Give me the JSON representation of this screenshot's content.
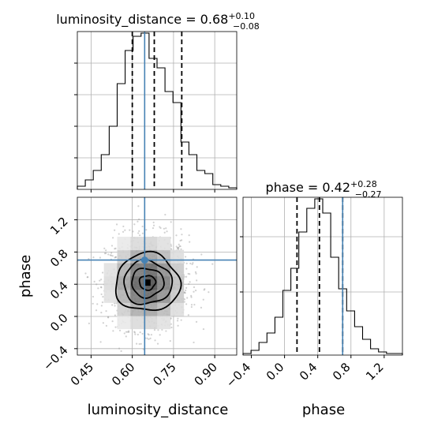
{
  "chart_data": {
    "type": "corner",
    "parameters": [
      "luminosity_distance",
      "phase"
    ],
    "truth": {
      "luminosity_distance": 0.645,
      "phase": 0.7
    },
    "truth_color": "#4682b4",
    "line_color": "#000000",
    "panels": [
      {
        "id": "luminosity-distance-hist",
        "type": "histogram",
        "title": {
          "main": "luminosity_distance = 0.68",
          "sup": "+0.10",
          "sub": "−0.08"
        },
        "xlim": [
          0.4,
          0.98
        ],
        "ylim": [
          0,
          1.0
        ],
        "x_ticks": [
          0.45,
          0.6,
          0.75,
          0.9
        ],
        "show_x_tick_labels": false,
        "y_ticks": [
          0.2,
          0.4,
          0.6,
          0.8
        ],
        "bins": {
          "start": 0.4,
          "width": 0.029,
          "counts": [
            0.02,
            0.06,
            0.12,
            0.22,
            0.4,
            0.67,
            0.88,
            0.97,
            0.99,
            0.83,
            0.77,
            0.62,
            0.55,
            0.3,
            0.22,
            0.12,
            0.1,
            0.03,
            0.02,
            0.01
          ]
        },
        "quantile_lines": [
          0.6,
          0.68,
          0.78
        ],
        "truth_line": 0.645
      },
      {
        "id": "phase-hist",
        "type": "histogram",
        "title": {
          "main": "phase = 0.42",
          "sup": "+0.28",
          "sub": "−0.27"
        },
        "xlim": [
          -0.5,
          1.42
        ],
        "ylim": [
          0,
          1.0
        ],
        "x_ticks": [
          -0.4,
          0.0,
          0.4,
          0.8,
          1.2
        ],
        "x_tick_labels": [
          "−0.4",
          "0.0",
          "0.4",
          "0.8",
          "1.2"
        ],
        "y_ticks": [
          0.4,
          0.75
        ],
        "bins": {
          "start": -0.5,
          "width": 0.096,
          "counts": [
            0.01,
            0.03,
            0.08,
            0.14,
            0.24,
            0.41,
            0.55,
            0.78,
            0.93,
            0.99,
            0.9,
            0.62,
            0.42,
            0.28,
            0.18,
            0.1,
            0.04,
            0.02,
            0.01,
            0.01
          ]
        },
        "quantile_lines": [
          0.15,
          0.42,
          0.7
        ],
        "truth_line": 0.7
      },
      {
        "id": "joint-density",
        "type": "2d-density",
        "xlim": [
          0.4,
          0.98
        ],
        "ylim": [
          -0.48,
          1.48
        ],
        "x_ticks": [
          0.45,
          0.6,
          0.75,
          0.9
        ],
        "x_tick_labels": [
          "0.45",
          "0.60",
          "0.75",
          "0.90"
        ],
        "y_ticks": [
          -0.4,
          0.0,
          0.4,
          0.8,
          1.2
        ],
        "y_tick_labels": [
          "−0.4",
          "0.0",
          "0.4",
          "0.8",
          "1.2"
        ],
        "center": [
          0.655,
          0.42
        ],
        "sigma": [
          0.075,
          0.29
        ],
        "contour_levels": [
          0.5,
          1.0,
          1.5,
          2.0
        ],
        "truth_point": [
          0.645,
          0.7
        ],
        "grid": true
      }
    ],
    "xlabels": [
      "luminosity_distance",
      "phase"
    ],
    "ylabel": "phase"
  }
}
